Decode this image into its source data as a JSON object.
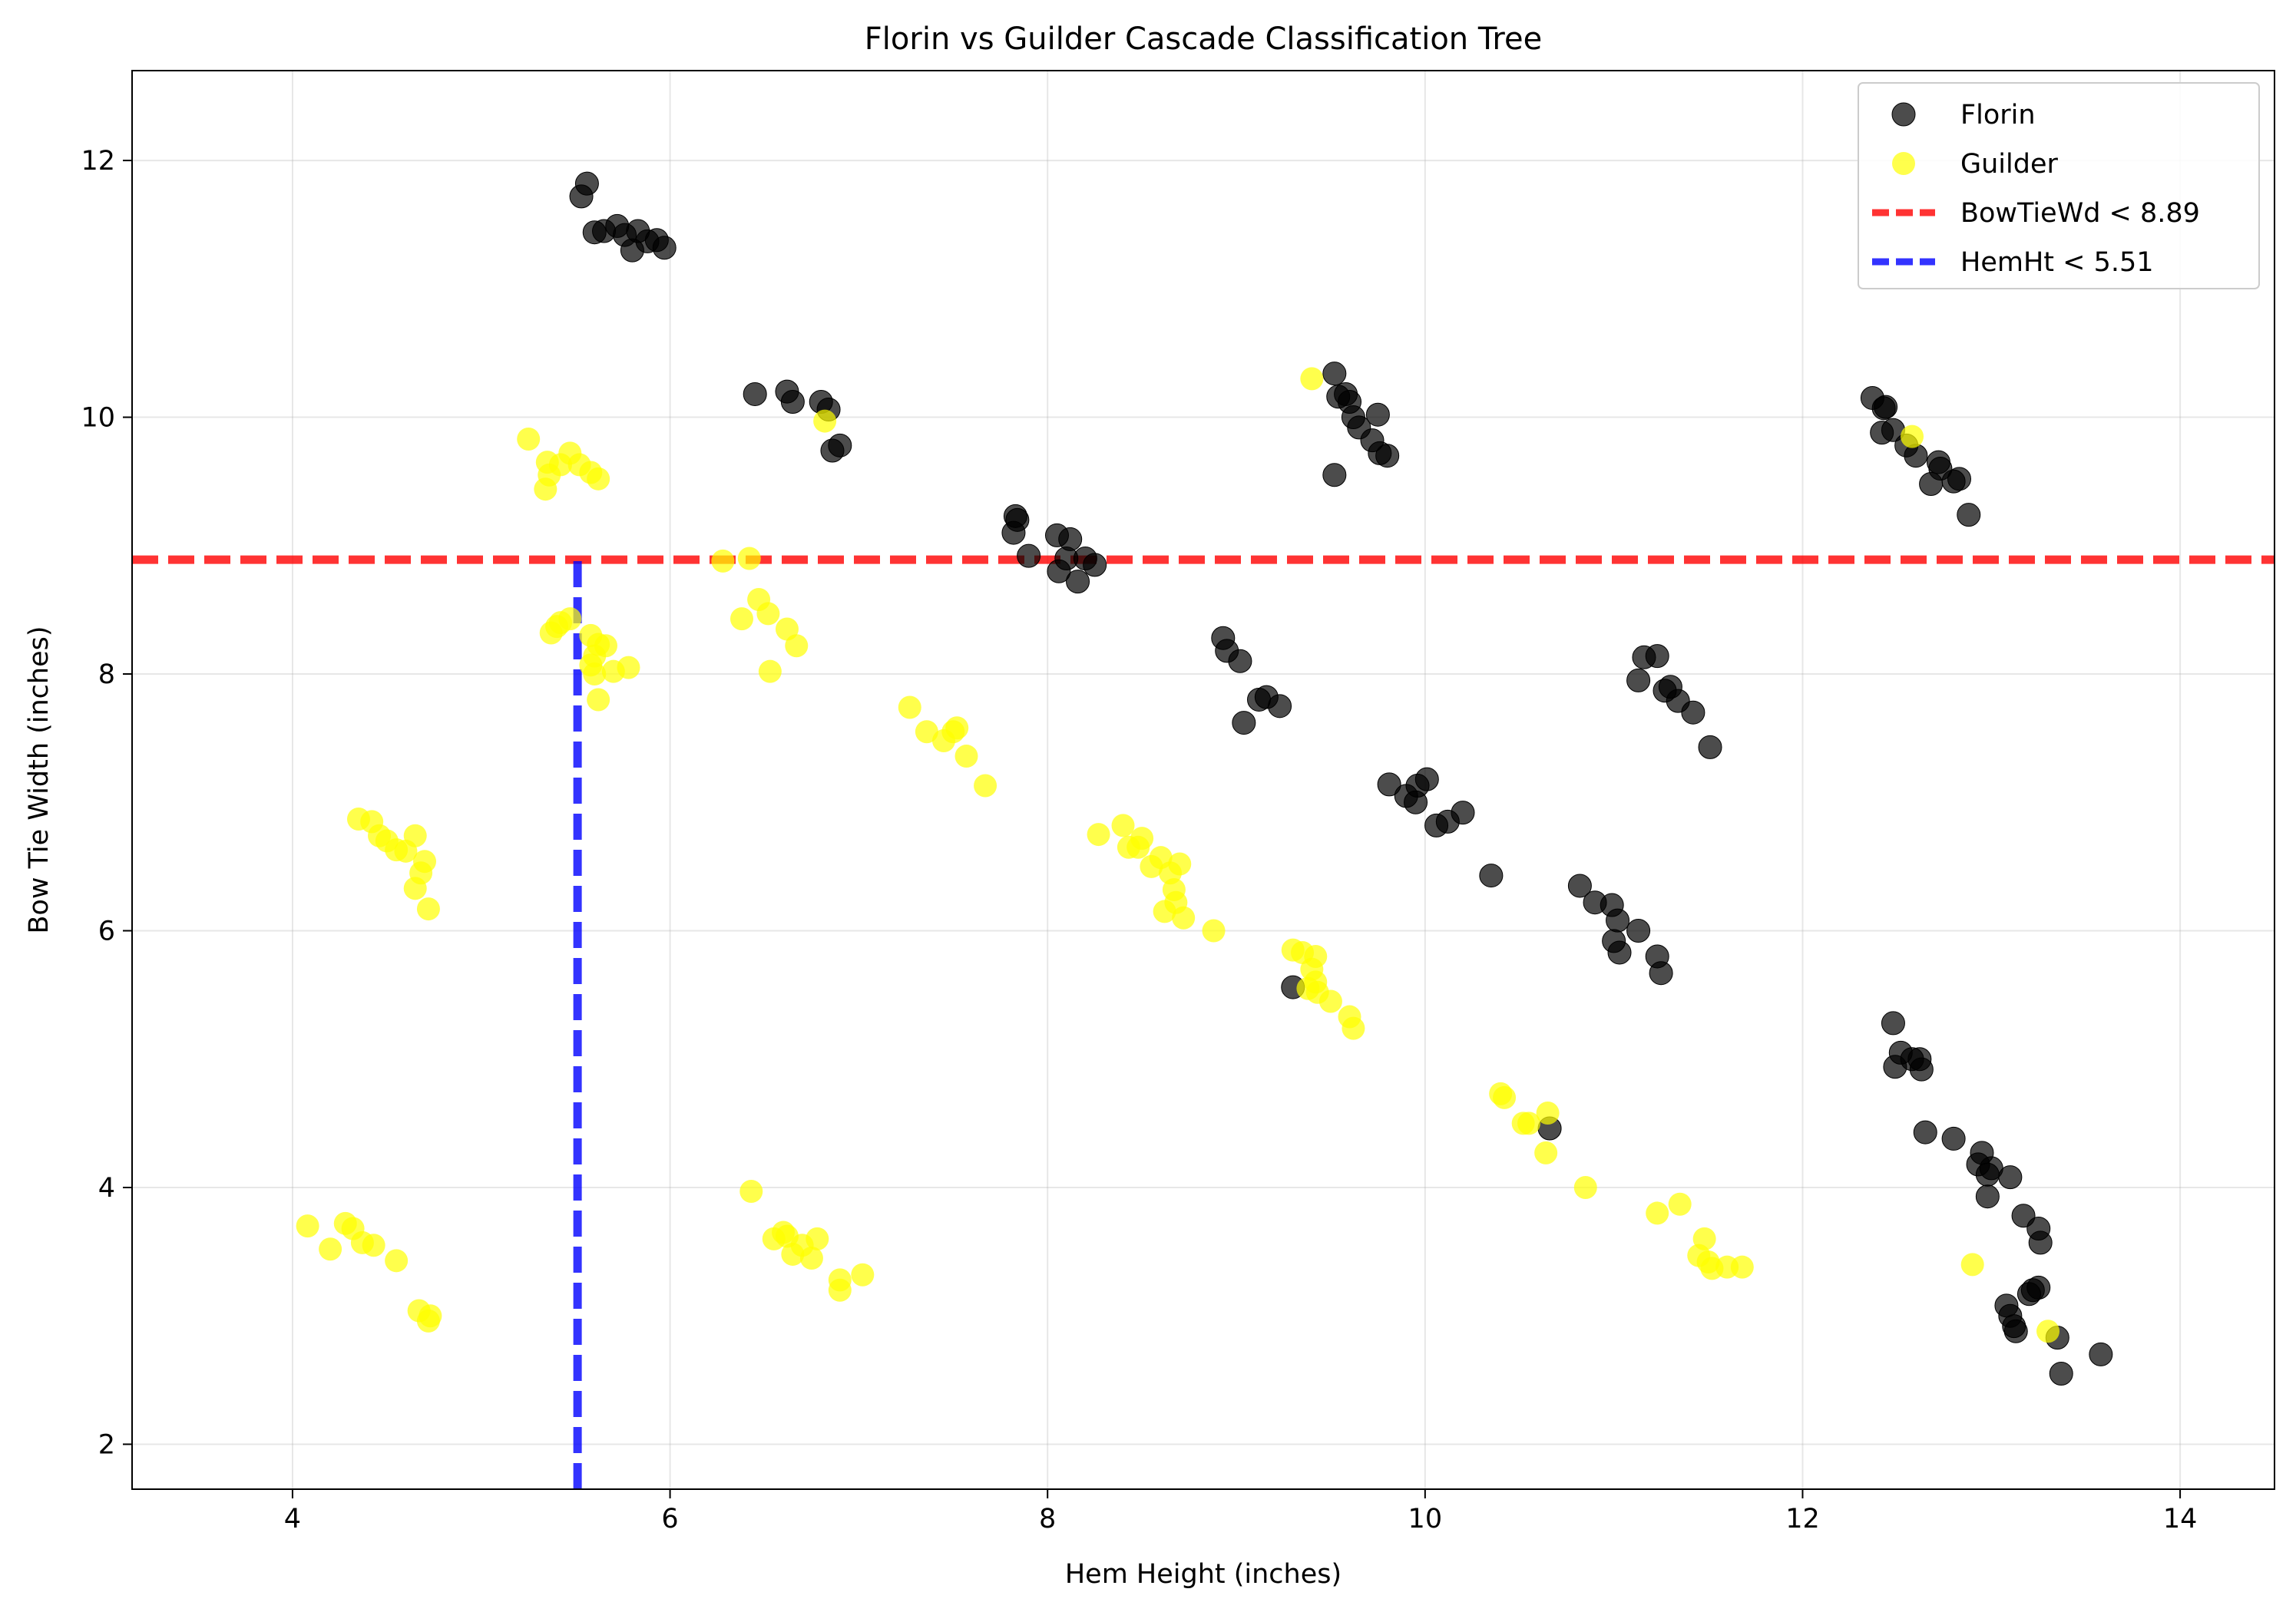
{
  "chart_data": {
    "type": "scatter",
    "title": "Florin vs Guilder Cascade Classification Tree",
    "xlabel": "Hem Height (inches)",
    "ylabel": "Bow Tie Width (inches)",
    "xlim": [
      3.15,
      14.5
    ],
    "ylim": [
      1.65,
      12.7
    ],
    "xticks": [
      4,
      6,
      8,
      10,
      12,
      14
    ],
    "yticks": [
      2,
      4,
      6,
      8,
      10,
      12
    ],
    "grid": true,
    "legend_position": "top-right",
    "series": [
      {
        "name": "Florin",
        "color": "#000000",
        "points": [
          [
            5.53,
            11.72
          ],
          [
            5.56,
            11.82
          ],
          [
            5.6,
            11.44
          ],
          [
            5.65,
            11.45
          ],
          [
            5.72,
            11.49
          ],
          [
            5.76,
            11.42
          ],
          [
            5.8,
            11.3
          ],
          [
            5.83,
            11.45
          ],
          [
            5.88,
            11.37
          ],
          [
            5.93,
            11.38
          ],
          [
            5.97,
            11.32
          ],
          [
            6.45,
            10.18
          ],
          [
            6.62,
            10.2
          ],
          [
            6.65,
            10.12
          ],
          [
            6.8,
            10.12
          ],
          [
            6.84,
            10.06
          ],
          [
            6.86,
            9.74
          ],
          [
            6.9,
            9.78
          ],
          [
            7.82,
            9.1
          ],
          [
            7.83,
            9.23
          ],
          [
            7.84,
            9.2
          ],
          [
            7.9,
            8.92
          ],
          [
            8.05,
            9.08
          ],
          [
            8.06,
            8.8
          ],
          [
            8.1,
            8.9
          ],
          [
            8.12,
            9.05
          ],
          [
            8.16,
            8.72
          ],
          [
            8.2,
            8.9
          ],
          [
            8.25,
            8.85
          ],
          [
            9.52,
            10.34
          ],
          [
            9.54,
            10.16
          ],
          [
            9.58,
            10.18
          ],
          [
            9.6,
            10.12
          ],
          [
            9.62,
            10.0
          ],
          [
            9.65,
            9.92
          ],
          [
            9.52,
            9.55
          ],
          [
            9.72,
            9.82
          ],
          [
            9.75,
            10.02
          ],
          [
            9.76,
            9.72
          ],
          [
            9.8,
            9.7
          ],
          [
            12.37,
            10.15
          ],
          [
            12.43,
            10.07
          ],
          [
            12.44,
            10.08
          ],
          [
            12.42,
            9.88
          ],
          [
            12.48,
            9.9
          ],
          [
            12.55,
            9.78
          ],
          [
            12.6,
            9.7
          ],
          [
            12.68,
            9.48
          ],
          [
            12.72,
            9.65
          ],
          [
            12.73,
            9.6
          ],
          [
            12.8,
            9.5
          ],
          [
            12.83,
            9.52
          ],
          [
            12.88,
            9.24
          ],
          [
            8.93,
            8.28
          ],
          [
            8.95,
            8.18
          ],
          [
            9.02,
            8.1
          ],
          [
            9.04,
            7.62
          ],
          [
            9.12,
            7.8
          ],
          [
            9.16,
            7.82
          ],
          [
            9.23,
            7.75
          ],
          [
            11.13,
            7.95
          ],
          [
            11.16,
            8.13
          ],
          [
            11.23,
            8.14
          ],
          [
            11.27,
            7.87
          ],
          [
            11.3,
            7.9
          ],
          [
            11.34,
            7.79
          ],
          [
            11.42,
            7.7
          ],
          [
            11.51,
            7.43
          ],
          [
            9.81,
            7.14
          ],
          [
            9.9,
            7.05
          ],
          [
            9.95,
            7.0
          ],
          [
            9.96,
            7.13
          ],
          [
            10.01,
            7.18
          ],
          [
            10.06,
            6.82
          ],
          [
            10.12,
            6.85
          ],
          [
            10.2,
            6.92
          ],
          [
            10.35,
            6.43
          ],
          [
            10.82,
            6.35
          ],
          [
            10.9,
            6.22
          ],
          [
            10.99,
            6.2
          ],
          [
            11.0,
            5.92
          ],
          [
            11.02,
            6.08
          ],
          [
            11.03,
            5.83
          ],
          [
            11.13,
            6.0
          ],
          [
            11.23,
            5.8
          ],
          [
            11.25,
            5.67
          ],
          [
            9.3,
            5.56
          ],
          [
            10.66,
            4.46
          ],
          [
            12.48,
            5.28
          ],
          [
            12.49,
            4.94
          ],
          [
            12.52,
            5.05
          ],
          [
            12.58,
            5.0
          ],
          [
            12.62,
            5.0
          ],
          [
            12.63,
            4.92
          ],
          [
            12.65,
            4.43
          ],
          [
            12.8,
            4.38
          ],
          [
            12.93,
            4.18
          ],
          [
            12.95,
            4.27
          ],
          [
            12.98,
            4.1
          ],
          [
            13.0,
            4.15
          ],
          [
            12.98,
            3.93
          ],
          [
            13.1,
            4.08
          ],
          [
            13.17,
            3.78
          ],
          [
            13.25,
            3.68
          ],
          [
            13.26,
            3.57
          ],
          [
            13.08,
            3.08
          ],
          [
            13.1,
            3.0
          ],
          [
            13.12,
            2.92
          ],
          [
            13.13,
            2.88
          ],
          [
            13.2,
            3.17
          ],
          [
            13.22,
            3.2
          ],
          [
            13.25,
            3.22
          ],
          [
            13.35,
            2.83
          ],
          [
            13.37,
            2.55
          ],
          [
            13.58,
            2.7
          ]
        ]
      },
      {
        "name": "Guilder",
        "color": "#ffff00",
        "points": [
          [
            5.25,
            9.83
          ],
          [
            5.35,
            9.65
          ],
          [
            5.36,
            9.55
          ],
          [
            5.34,
            9.44
          ],
          [
            5.42,
            9.63
          ],
          [
            5.47,
            9.72
          ],
          [
            5.52,
            9.63
          ],
          [
            5.58,
            9.57
          ],
          [
            5.62,
            9.52
          ],
          [
            5.37,
            8.32
          ],
          [
            5.4,
            8.37
          ],
          [
            5.42,
            8.4
          ],
          [
            5.47,
            8.43
          ],
          [
            5.58,
            8.3
          ],
          [
            5.6,
            8.14
          ],
          [
            5.62,
            8.23
          ],
          [
            5.66,
            8.22
          ],
          [
            5.58,
            8.07
          ],
          [
            5.6,
            8.0
          ],
          [
            5.7,
            8.02
          ],
          [
            5.78,
            8.05
          ],
          [
            5.62,
            7.8
          ],
          [
            4.35,
            6.87
          ],
          [
            4.42,
            6.85
          ],
          [
            4.46,
            6.74
          ],
          [
            4.5,
            6.7
          ],
          [
            4.55,
            6.63
          ],
          [
            4.6,
            6.62
          ],
          [
            4.65,
            6.74
          ],
          [
            4.7,
            6.54
          ],
          [
            4.68,
            6.45
          ],
          [
            4.65,
            6.33
          ],
          [
            4.72,
            6.17
          ],
          [
            4.08,
            3.7
          ],
          [
            4.2,
            3.52
          ],
          [
            4.28,
            3.72
          ],
          [
            4.32,
            3.68
          ],
          [
            4.37,
            3.57
          ],
          [
            4.43,
            3.55
          ],
          [
            4.55,
            3.43
          ],
          [
            4.67,
            3.04
          ],
          [
            4.73,
            3.0
          ],
          [
            4.72,
            2.96
          ],
          [
            6.28,
            8.88
          ],
          [
            6.42,
            8.9
          ],
          [
            6.38,
            8.43
          ],
          [
            6.47,
            8.58
          ],
          [
            6.52,
            8.47
          ],
          [
            6.62,
            8.35
          ],
          [
            6.67,
            8.22
          ],
          [
            6.53,
            8.02
          ],
          [
            6.82,
            9.97
          ],
          [
            7.27,
            7.74
          ],
          [
            7.36,
            7.55
          ],
          [
            7.45,
            7.48
          ],
          [
            7.5,
            7.55
          ],
          [
            7.52,
            7.58
          ],
          [
            7.57,
            7.36
          ],
          [
            7.67,
            7.13
          ],
          [
            6.43,
            3.97
          ],
          [
            6.55,
            3.6
          ],
          [
            6.6,
            3.65
          ],
          [
            6.62,
            3.62
          ],
          [
            6.65,
            3.48
          ],
          [
            6.7,
            3.55
          ],
          [
            6.75,
            3.45
          ],
          [
            6.78,
            3.6
          ],
          [
            6.9,
            3.28
          ],
          [
            6.9,
            3.2
          ],
          [
            7.02,
            3.32
          ],
          [
            8.27,
            6.75
          ],
          [
            8.4,
            6.82
          ],
          [
            8.43,
            6.65
          ],
          [
            8.48,
            6.65
          ],
          [
            8.5,
            6.72
          ],
          [
            8.55,
            6.5
          ],
          [
            8.6,
            6.57
          ],
          [
            8.62,
            6.15
          ],
          [
            8.65,
            6.45
          ],
          [
            8.67,
            6.32
          ],
          [
            8.68,
            6.22
          ],
          [
            8.7,
            6.52
          ],
          [
            8.72,
            6.1
          ],
          [
            8.88,
            6.0
          ],
          [
            9.3,
            5.85
          ],
          [
            9.35,
            5.83
          ],
          [
            9.42,
            5.8
          ],
          [
            9.4,
            5.7
          ],
          [
            9.42,
            5.6
          ],
          [
            9.43,
            5.52
          ],
          [
            9.38,
            5.55
          ],
          [
            9.5,
            5.45
          ],
          [
            9.6,
            5.33
          ],
          [
            9.62,
            5.24
          ],
          [
            9.4,
            10.3
          ],
          [
            10.4,
            4.73
          ],
          [
            10.42,
            4.7
          ],
          [
            10.52,
            4.5
          ],
          [
            10.55,
            4.5
          ],
          [
            10.65,
            4.58
          ],
          [
            10.64,
            4.27
          ],
          [
            10.85,
            4.0
          ],
          [
            11.23,
            3.8
          ],
          [
            11.35,
            3.87
          ],
          [
            11.45,
            3.47
          ],
          [
            11.48,
            3.6
          ],
          [
            11.5,
            3.42
          ],
          [
            11.52,
            3.37
          ],
          [
            11.6,
            3.38
          ],
          [
            11.68,
            3.38
          ],
          [
            12.58,
            9.85
          ],
          [
            12.9,
            3.4
          ],
          [
            13.3,
            2.88
          ]
        ]
      }
    ],
    "reference_lines": [
      {
        "label": "BowTieWd < 8.89",
        "orientation": "horizontal",
        "value": 8.89,
        "from_x": 3.15,
        "to_x": 14.5,
        "color": "#ff0000"
      },
      {
        "label": "HemHt < 5.51",
        "orientation": "vertical",
        "value": 5.51,
        "from_y": 1.65,
        "to_y": 8.89,
        "color": "#0000ff"
      }
    ]
  }
}
